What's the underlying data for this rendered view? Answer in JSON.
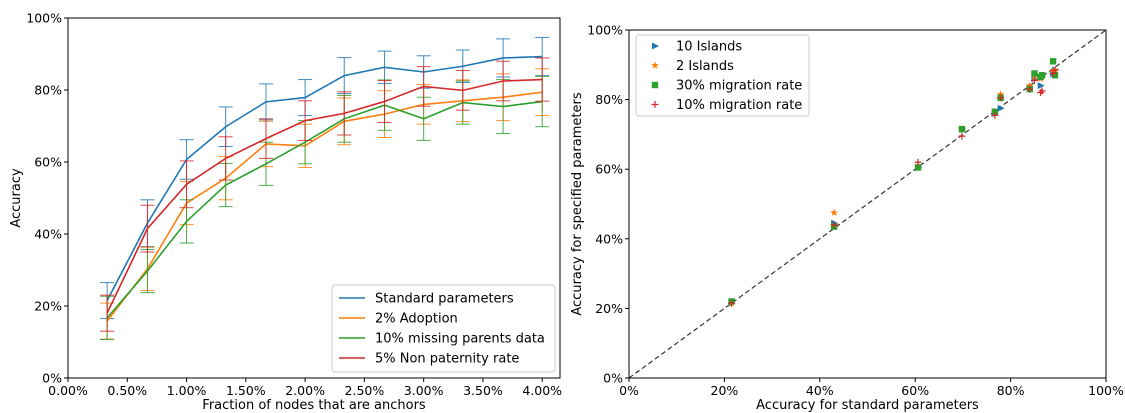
{
  "chart_data": [
    {
      "type": "line",
      "xlabel": "Fraction of nodes that are anchors",
      "ylabel": "Accuracy",
      "x": [
        0.33,
        0.67,
        1.0,
        1.33,
        1.67,
        2.0,
        2.33,
        2.67,
        3.0,
        3.33,
        3.67,
        4.0
      ],
      "xlim": [
        0.0,
        4.15
      ],
      "ylim": [
        0,
        100
      ],
      "xticks": [
        0.0,
        0.5,
        1.0,
        1.5,
        2.0,
        2.5,
        3.0,
        3.5,
        4.0
      ],
      "xtick_labels": [
        "0.00%",
        "0.50%",
        "1.00%",
        "1.50%",
        "2.00%",
        "2.50%",
        "3.00%",
        "3.50%",
        "4.00%"
      ],
      "yticks": [
        0,
        20,
        40,
        60,
        80,
        100
      ],
      "ytick_labels": [
        "0%",
        "20%",
        "40%",
        "60%",
        "80%",
        "100%"
      ],
      "grid": false,
      "legend_position": "bottom-right",
      "series": [
        {
          "name": "Standard parameters",
          "color": "#1f77b4",
          "values": [
            21.5,
            43.0,
            60.7,
            69.8,
            76.7,
            77.9,
            84.0,
            86.3,
            85.0,
            86.6,
            88.9,
            89.3
          ],
          "errors": [
            5.0,
            6.5,
            5.5,
            5.5,
            5.0,
            5.0,
            5.0,
            4.5,
            4.5,
            4.5,
            5.3,
            5.3
          ]
        },
        {
          "name": "2% Adoption",
          "color": "#ff7f0e",
          "values": [
            15.8,
            30.3,
            48.6,
            55.5,
            65.0,
            64.5,
            71.3,
            73.3,
            76.0,
            77.0,
            78.0,
            79.4
          ],
          "errors": [
            5.0,
            6.0,
            6.0,
            6.0,
            6.3,
            6.0,
            6.5,
            6.5,
            5.5,
            5.8,
            6.5,
            6.5
          ]
        },
        {
          "name": "10% missing parents data",
          "color": "#2ca02c",
          "values": [
            16.7,
            29.7,
            43.5,
            53.6,
            59.5,
            65.5,
            72.0,
            75.8,
            72.0,
            76.5,
            75.4,
            76.8
          ],
          "errors": [
            6.0,
            6.0,
            6.0,
            6.0,
            6.0,
            6.0,
            6.5,
            7.0,
            6.0,
            6.0,
            7.5,
            7.0
          ]
        },
        {
          "name": "5% Non paternity rate",
          "color": "#d62728",
          "values": [
            18.0,
            41.5,
            53.8,
            61.0,
            66.5,
            71.5,
            73.5,
            76.8,
            81.0,
            79.9,
            82.5,
            82.9
          ],
          "errors": [
            5.0,
            6.5,
            6.5,
            6.0,
            5.5,
            5.5,
            6.0,
            5.8,
            5.5,
            5.5,
            5.5,
            6.0
          ]
        }
      ]
    },
    {
      "type": "scatter",
      "xlabel": "Accuracy for standard parameters",
      "ylabel": "Accuracy for specified parameters",
      "xlim": [
        0,
        100
      ],
      "ylim": [
        0,
        100
      ],
      "xticks": [
        0,
        20,
        40,
        60,
        80,
        100
      ],
      "xtick_labels": [
        "0%",
        "20%",
        "40%",
        "60%",
        "80%",
        "100%"
      ],
      "yticks": [
        0,
        20,
        40,
        60,
        80,
        100
      ],
      "ytick_labels": [
        "0%",
        "20%",
        "40%",
        "60%",
        "80%",
        "100%"
      ],
      "reference_line": "y = x (dashed)",
      "grid": false,
      "legend_position": "top-left",
      "series": [
        {
          "name": "10 Islands",
          "color": "#1f77b4",
          "marker": "triangle-right",
          "x": [
            21.5,
            43.0,
            60.6,
            69.8,
            76.7,
            77.9,
            84.0,
            86.3,
            85.0,
            86.6,
            88.9,
            89.3
          ],
          "y": [
            21.5,
            44.5,
            60.5,
            71.5,
            76.0,
            77.5,
            83.5,
            84.0,
            86.0,
            87.0,
            87.5,
            88.5
          ]
        },
        {
          "name": "2 Islands",
          "color": "#ff7f0e",
          "marker": "star",
          "x": [
            21.5,
            43.0,
            60.6,
            69.8,
            76.7,
            77.9,
            84.0,
            86.3,
            85.0,
            86.6,
            88.9,
            89.3
          ],
          "y": [
            21.5,
            47.5,
            60.5,
            71.5,
            76.5,
            81.5,
            84.0,
            86.0,
            86.5,
            87.0,
            88.0,
            88.5
          ]
        },
        {
          "name": "30% migration rate",
          "color": "#2ca02c",
          "marker": "square",
          "x": [
            21.5,
            43.0,
            60.6,
            69.8,
            76.7,
            77.9,
            84.0,
            86.3,
            85.0,
            86.6,
            88.9,
            89.3
          ],
          "y": [
            22.0,
            43.5,
            60.5,
            71.5,
            76.5,
            80.5,
            83.0,
            86.5,
            87.5,
            87.0,
            91.0,
            87.0
          ]
        },
        {
          "name": "10% migration rate",
          "color": "#d62728",
          "marker": "plus",
          "x": [
            21.5,
            43.0,
            60.6,
            69.8,
            76.7,
            77.9,
            84.0,
            86.3,
            85.0,
            86.6,
            88.9,
            89.3
          ],
          "y": [
            21.5,
            44.0,
            62.0,
            69.5,
            75.5,
            80.5,
            83.0,
            82.0,
            85.5,
            82.5,
            87.5,
            88.5
          ]
        }
      ]
    }
  ]
}
